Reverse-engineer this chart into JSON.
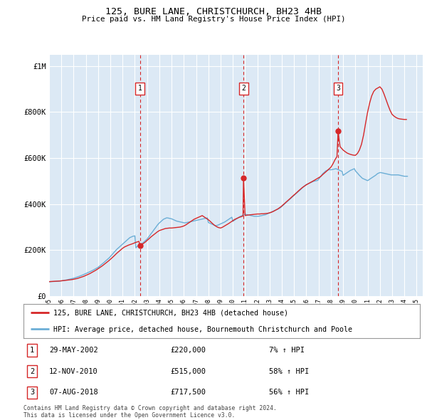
{
  "title1": "125, BURE LANE, CHRISTCHURCH, BH23 4HB",
  "title2": "Price paid vs. HM Land Registry's House Price Index (HPI)",
  "xlim": [
    1995.0,
    2025.5
  ],
  "ylim": [
    0,
    1050000
  ],
  "yticks": [
    0,
    200000,
    400000,
    600000,
    800000,
    1000000
  ],
  "ytick_labels": [
    "£0",
    "£200K",
    "£400K",
    "£600K",
    "£800K",
    "£1M"
  ],
  "bg_color": "#dce9f5",
  "grid_color": "#ffffff",
  "sale_dates": [
    2002.41,
    2010.87,
    2018.59
  ],
  "sale_prices": [
    220000,
    515000,
    717500
  ],
  "sale_labels": [
    "1",
    "2",
    "3"
  ],
  "sale_info": [
    {
      "num": "1",
      "date": "29-MAY-2002",
      "price": "£220,000",
      "hpi": "7% ↑ HPI"
    },
    {
      "num": "2",
      "date": "12-NOV-2010",
      "price": "£515,000",
      "hpi": "58% ↑ HPI"
    },
    {
      "num": "3",
      "date": "07-AUG-2018",
      "price": "£717,500",
      "hpi": "56% ↑ HPI"
    }
  ],
  "legend_line1": "125, BURE LANE, CHRISTCHURCH, BH23 4HB (detached house)",
  "legend_line2": "HPI: Average price, detached house, Bournemouth Christchurch and Poole",
  "footer1": "Contains HM Land Registry data © Crown copyright and database right 2024.",
  "footer2": "This data is licensed under the Open Government Licence v3.0.",
  "hpi_color": "#6baed6",
  "price_color": "#d62728",
  "dashed_color": "#d62728",
  "xticks": [
    1995,
    1996,
    1997,
    1998,
    1999,
    2000,
    2001,
    2002,
    2003,
    2004,
    2005,
    2006,
    2007,
    2008,
    2009,
    2010,
    2011,
    2012,
    2013,
    2014,
    2015,
    2016,
    2017,
    2018,
    2019,
    2020,
    2021,
    2022,
    2023,
    2024,
    2025
  ],
  "hpi_x": [
    1995.0,
    1995.08,
    1995.17,
    1995.25,
    1995.33,
    1995.42,
    1995.5,
    1995.58,
    1995.67,
    1995.75,
    1995.83,
    1995.92,
    1996.0,
    1996.08,
    1996.17,
    1996.25,
    1996.33,
    1996.42,
    1996.5,
    1996.58,
    1996.67,
    1996.75,
    1996.83,
    1996.92,
    1997.0,
    1997.08,
    1997.17,
    1997.25,
    1997.33,
    1997.42,
    1997.5,
    1997.58,
    1997.67,
    1997.75,
    1997.83,
    1997.92,
    1998.0,
    1998.08,
    1998.17,
    1998.25,
    1998.33,
    1998.42,
    1998.5,
    1998.58,
    1998.67,
    1998.75,
    1998.83,
    1998.92,
    1999.0,
    1999.08,
    1999.17,
    1999.25,
    1999.33,
    1999.42,
    1999.5,
    1999.58,
    1999.67,
    1999.75,
    1999.83,
    1999.92,
    2000.0,
    2000.08,
    2000.17,
    2000.25,
    2000.33,
    2000.42,
    2000.5,
    2000.58,
    2000.67,
    2000.75,
    2000.83,
    2000.92,
    2001.0,
    2001.08,
    2001.17,
    2001.25,
    2001.33,
    2001.42,
    2001.5,
    2001.58,
    2001.67,
    2001.75,
    2001.83,
    2001.92,
    2002.0,
    2002.08,
    2002.17,
    2002.25,
    2002.33,
    2002.42,
    2002.5,
    2002.58,
    2002.67,
    2002.75,
    2002.83,
    2002.92,
    2003.0,
    2003.08,
    2003.17,
    2003.25,
    2003.33,
    2003.42,
    2003.5,
    2003.58,
    2003.67,
    2003.75,
    2003.83,
    2003.92,
    2004.0,
    2004.08,
    2004.17,
    2004.25,
    2004.33,
    2004.42,
    2004.5,
    2004.58,
    2004.67,
    2004.75,
    2004.83,
    2004.92,
    2005.0,
    2005.08,
    2005.17,
    2005.25,
    2005.33,
    2005.42,
    2005.5,
    2005.58,
    2005.67,
    2005.75,
    2005.83,
    2005.92,
    2006.0,
    2006.08,
    2006.17,
    2006.25,
    2006.33,
    2006.42,
    2006.5,
    2006.58,
    2006.67,
    2006.75,
    2006.83,
    2006.92,
    2007.0,
    2007.08,
    2007.17,
    2007.25,
    2007.33,
    2007.42,
    2007.5,
    2007.58,
    2007.67,
    2007.75,
    2007.83,
    2007.92,
    2008.0,
    2008.08,
    2008.17,
    2008.25,
    2008.33,
    2008.42,
    2008.5,
    2008.58,
    2008.67,
    2008.75,
    2008.83,
    2008.92,
    2009.0,
    2009.08,
    2009.17,
    2009.25,
    2009.33,
    2009.42,
    2009.5,
    2009.58,
    2009.67,
    2009.75,
    2009.83,
    2009.92,
    2010.0,
    2010.08,
    2010.17,
    2010.25,
    2010.33,
    2010.42,
    2010.5,
    2010.58,
    2010.67,
    2010.75,
    2010.83,
    2010.92,
    2011.0,
    2011.08,
    2011.17,
    2011.25,
    2011.33,
    2011.42,
    2011.5,
    2011.58,
    2011.67,
    2011.75,
    2011.83,
    2011.92,
    2012.0,
    2012.08,
    2012.17,
    2012.25,
    2012.33,
    2012.42,
    2012.5,
    2012.58,
    2012.67,
    2012.75,
    2012.83,
    2012.92,
    2013.0,
    2013.08,
    2013.17,
    2013.25,
    2013.33,
    2013.42,
    2013.5,
    2013.58,
    2013.67,
    2013.75,
    2013.83,
    2013.92,
    2014.0,
    2014.08,
    2014.17,
    2014.25,
    2014.33,
    2014.42,
    2014.5,
    2014.58,
    2014.67,
    2014.75,
    2014.83,
    2014.92,
    2015.0,
    2015.08,
    2015.17,
    2015.25,
    2015.33,
    2015.42,
    2015.5,
    2015.58,
    2015.67,
    2015.75,
    2015.83,
    2015.92,
    2016.0,
    2016.08,
    2016.17,
    2016.25,
    2016.33,
    2016.42,
    2016.5,
    2016.58,
    2016.67,
    2016.75,
    2016.83,
    2016.92,
    2017.0,
    2017.08,
    2017.17,
    2017.25,
    2017.33,
    2017.42,
    2017.5,
    2017.58,
    2017.67,
    2017.75,
    2017.83,
    2017.92,
    2018.0,
    2018.08,
    2018.17,
    2018.25,
    2018.33,
    2018.42,
    2018.5,
    2018.58,
    2018.67,
    2018.75,
    2018.83,
    2018.92,
    2019.0,
    2019.08,
    2019.17,
    2019.25,
    2019.33,
    2019.42,
    2019.5,
    2019.58,
    2019.67,
    2019.75,
    2019.83,
    2019.92,
    2020.0,
    2020.08,
    2020.17,
    2020.25,
    2020.33,
    2020.42,
    2020.5,
    2020.58,
    2020.67,
    2020.75,
    2020.83,
    2020.92,
    2021.0,
    2021.08,
    2021.17,
    2021.25,
    2021.33,
    2021.42,
    2021.5,
    2021.58,
    2021.67,
    2021.75,
    2021.83,
    2021.92,
    2022.0,
    2022.08,
    2022.17,
    2022.25,
    2022.33,
    2022.42,
    2022.5,
    2022.58,
    2022.67,
    2022.75,
    2022.83,
    2022.92,
    2023.0,
    2023.08,
    2023.17,
    2023.25,
    2023.33,
    2023.42,
    2023.5,
    2023.58,
    2023.67,
    2023.75,
    2023.83,
    2023.92,
    2024.0,
    2024.08,
    2024.17,
    2024.25
  ],
  "hpi_y": [
    62000,
    62300,
    62600,
    63000,
    63400,
    63700,
    64000,
    64400,
    64700,
    65000,
    65400,
    65700,
    66000,
    66800,
    67600,
    68400,
    69200,
    70200,
    71200,
    72200,
    73200,
    74200,
    75200,
    76200,
    77200,
    78800,
    80400,
    82000,
    83600,
    85200,
    86800,
    88400,
    90000,
    92000,
    94000,
    96000,
    98000,
    100000,
    102000,
    104000,
    106000,
    108000,
    110000,
    112500,
    115000,
    117500,
    120000,
    122500,
    125000,
    128500,
    132000,
    135500,
    139000,
    143000,
    147000,
    151000,
    155000,
    159000,
    163000,
    167000,
    172000,
    177000,
    182000,
    187000,
    192000,
    197000,
    202000,
    206000,
    210000,
    214000,
    218000,
    222000,
    226000,
    230000,
    234000,
    238000,
    242000,
    246000,
    250000,
    254000,
    256000,
    258000,
    260000,
    261000,
    262000,
    210000,
    215000,
    219000,
    222000,
    224000,
    226000,
    228000,
    232000,
    236000,
    240000,
    244000,
    248000,
    254000,
    260000,
    266000,
    272000,
    278000,
    284000,
    290000,
    296000,
    302000,
    308000,
    314000,
    318000,
    322000,
    326000,
    330000,
    334000,
    336000,
    338000,
    340000,
    340000,
    339000,
    338000,
    337000,
    336000,
    334000,
    332000,
    330000,
    328000,
    326000,
    325000,
    324000,
    323000,
    322000,
    321000,
    320000,
    319000,
    318000,
    319000,
    320000,
    321000,
    322000,
    323000,
    324000,
    325000,
    326000,
    327000,
    328000,
    329000,
    330000,
    331000,
    332000,
    333000,
    334000,
    335000,
    336000,
    337000,
    338000,
    339000,
    340000,
    320000,
    318000,
    316000,
    314000,
    312000,
    310000,
    308000,
    306000,
    307000,
    308000,
    310000,
    312000,
    314000,
    316000,
    318000,
    320000,
    322000,
    325000,
    328000,
    331000,
    334000,
    337000,
    340000,
    343000,
    325000,
    328000,
    331000,
    334000,
    337000,
    340000,
    343000,
    346000,
    348000,
    350000,
    352000,
    354000,
    356000,
    355000,
    354000,
    353000,
    352000,
    351000,
    350000,
    349000,
    348000,
    347000,
    347000,
    347000,
    347000,
    347000,
    348000,
    349000,
    350000,
    351000,
    352000,
    353000,
    354000,
    356000,
    358000,
    360000,
    362000,
    364000,
    366000,
    368000,
    370000,
    372000,
    374000,
    376000,
    378000,
    380000,
    383000,
    386000,
    390000,
    394000,
    398000,
    402000,
    406000,
    410000,
    414000,
    418000,
    422000,
    426000,
    430000,
    434000,
    438000,
    442000,
    446000,
    450000,
    454000,
    458000,
    462000,
    466000,
    470000,
    474000,
    478000,
    482000,
    485000,
    487000,
    489000,
    491000,
    493000,
    495000,
    497000,
    499000,
    500000,
    501000,
    502000,
    503000,
    508000,
    514000,
    520000,
    526000,
    532000,
    536000,
    540000,
    544000,
    546000,
    548000,
    549000,
    550000,
    549000,
    550000,
    551000,
    552000,
    553000,
    554000,
    552000,
    550000,
    548000,
    546000,
    544000,
    542000,
    525000,
    528000,
    531000,
    534000,
    537000,
    540000,
    543000,
    546000,
    548000,
    550000,
    552000,
    554000,
    545000,
    540000,
    535000,
    530000,
    525000,
    520000,
    516000,
    512000,
    510000,
    508000,
    506000,
    504000,
    502000,
    505000,
    508000,
    511000,
    514000,
    517000,
    520000,
    523000,
    526000,
    530000,
    533000,
    535000,
    537000,
    537000,
    536000,
    535000,
    534000,
    533000,
    532000,
    531000,
    530000,
    529000,
    528000,
    527000,
    527000,
    527000,
    527000,
    527000,
    527000,
    527000,
    527000,
    526000,
    525000,
    524000,
    523000,
    522000,
    521000,
    521000,
    521000,
    521000,
    521000,
    521000,
    521000,
    521000,
    521000,
    520000,
    520000,
    519000,
    518000,
    519000,
    520000,
    521000
  ],
  "price_x": [
    1995.0,
    1995.17,
    1995.33,
    1995.5,
    1995.67,
    1995.83,
    1996.0,
    1996.17,
    1996.33,
    1996.5,
    1996.67,
    1996.83,
    1997.0,
    1997.17,
    1997.33,
    1997.5,
    1997.67,
    1997.83,
    1998.0,
    1998.17,
    1998.33,
    1998.5,
    1998.67,
    1998.83,
    1999.0,
    1999.17,
    1999.33,
    1999.5,
    1999.67,
    1999.83,
    2000.0,
    2000.17,
    2000.33,
    2000.5,
    2000.67,
    2000.83,
    2001.0,
    2001.17,
    2001.33,
    2001.5,
    2001.67,
    2001.83,
    2002.0,
    2002.17,
    2002.33,
    2002.41,
    2002.5,
    2002.67,
    2002.83,
    2003.0,
    2003.17,
    2003.33,
    2003.5,
    2003.67,
    2003.83,
    2004.0,
    2004.17,
    2004.33,
    2004.5,
    2004.67,
    2004.83,
    2005.0,
    2005.17,
    2005.33,
    2005.5,
    2005.67,
    2005.83,
    2006.0,
    2006.17,
    2006.33,
    2006.5,
    2006.67,
    2006.83,
    2007.0,
    2007.17,
    2007.33,
    2007.5,
    2007.67,
    2007.83,
    2008.0,
    2008.17,
    2008.33,
    2008.5,
    2008.67,
    2008.83,
    2009.0,
    2009.17,
    2009.33,
    2009.5,
    2009.67,
    2009.83,
    2010.0,
    2010.17,
    2010.33,
    2010.5,
    2010.67,
    2010.83,
    2010.87,
    2011.0,
    2011.17,
    2011.33,
    2011.5,
    2011.67,
    2011.83,
    2012.0,
    2012.17,
    2012.33,
    2012.5,
    2012.67,
    2012.83,
    2013.0,
    2013.17,
    2013.33,
    2013.5,
    2013.67,
    2013.83,
    2014.0,
    2014.17,
    2014.33,
    2014.5,
    2014.67,
    2014.83,
    2015.0,
    2015.17,
    2015.33,
    2015.5,
    2015.67,
    2015.83,
    2016.0,
    2016.17,
    2016.33,
    2016.5,
    2016.67,
    2016.83,
    2017.0,
    2017.17,
    2017.33,
    2017.5,
    2017.67,
    2017.83,
    2018.0,
    2018.17,
    2018.33,
    2018.5,
    2018.59,
    2018.75,
    2018.92,
    2019.0,
    2019.17,
    2019.33,
    2019.5,
    2019.67,
    2019.83,
    2020.0,
    2020.17,
    2020.33,
    2020.5,
    2020.67,
    2020.83,
    2021.0,
    2021.17,
    2021.33,
    2021.5,
    2021.67,
    2021.83,
    2022.0,
    2022.17,
    2022.33,
    2022.5,
    2022.67,
    2022.83,
    2023.0,
    2023.17,
    2023.33,
    2023.5,
    2023.67,
    2023.83,
    2024.0,
    2024.17
  ],
  "price_y": [
    63000,
    63500,
    64000,
    64500,
    65000,
    65500,
    66500,
    67500,
    68500,
    69500,
    70500,
    71500,
    73000,
    75000,
    77000,
    80000,
    83000,
    86000,
    90000,
    94000,
    98000,
    103000,
    108000,
    113000,
    119000,
    125000,
    131000,
    138000,
    145000,
    152000,
    160000,
    168000,
    176000,
    185000,
    193000,
    200000,
    208000,
    214000,
    218000,
    222000,
    225000,
    228000,
    232000,
    235000,
    238000,
    220000,
    224000,
    228000,
    234000,
    242000,
    250000,
    258000,
    265000,
    272000,
    279000,
    285000,
    288000,
    291000,
    294000,
    295000,
    296000,
    296000,
    297000,
    298000,
    299000,
    300000,
    302000,
    305000,
    310000,
    316000,
    322000,
    328000,
    334000,
    338000,
    342000,
    346000,
    350000,
    344000,
    338000,
    332000,
    324000,
    316000,
    308000,
    302000,
    298000,
    296000,
    300000,
    305000,
    310000,
    316000,
    322000,
    328000,
    334000,
    338000,
    342000,
    345000,
    348000,
    515000,
    350000,
    352000,
    353000,
    354000,
    355000,
    356000,
    357000,
    357000,
    358000,
    358000,
    359000,
    360000,
    362000,
    365000,
    369000,
    374000,
    379000,
    385000,
    392000,
    400000,
    408000,
    416000,
    424000,
    432000,
    440000,
    448000,
    456000,
    464000,
    472000,
    478000,
    484000,
    489000,
    494000,
    499000,
    504000,
    509000,
    514000,
    520000,
    528000,
    536000,
    544000,
    552000,
    560000,
    575000,
    592000,
    607000,
    717500,
    650000,
    640000,
    635000,
    628000,
    622000,
    618000,
    615000,
    613000,
    612000,
    620000,
    635000,
    660000,
    700000,
    750000,
    800000,
    840000,
    870000,
    890000,
    900000,
    905000,
    910000,
    900000,
    880000,
    855000,
    830000,
    808000,
    790000,
    782000,
    776000,
    772000,
    770000,
    769000,
    768000,
    768000
  ]
}
